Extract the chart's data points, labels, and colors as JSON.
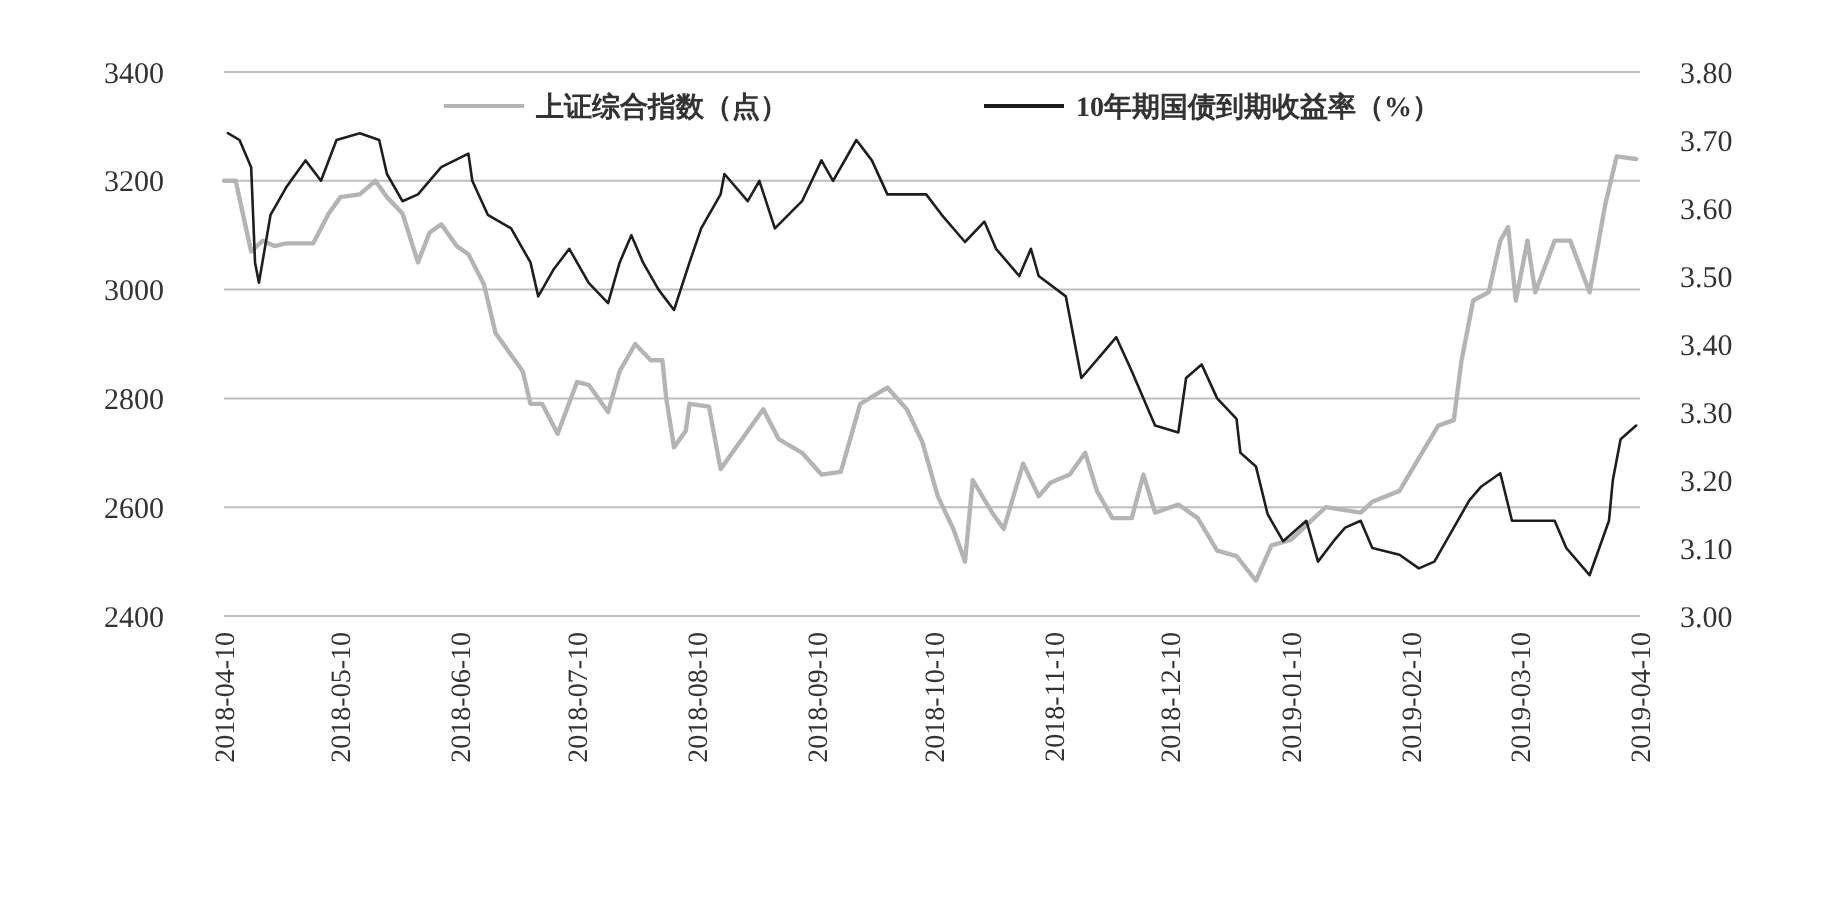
{
  "chart_data": {
    "type": "line",
    "ylim": [
      2400,
      3400
    ],
    "yticks": [
      2400,
      2600,
      2800,
      3000,
      3200,
      3400
    ],
    "y2lim": [
      3.0,
      3.8
    ],
    "y2ticks": [
      {
        "value": 3.0,
        "label": "3.00"
      },
      {
        "value": 3.1,
        "label": "3.10"
      },
      {
        "value": 3.2,
        "label": "3.20"
      },
      {
        "value": 3.3,
        "label": "3.30"
      },
      {
        "value": 3.4,
        "label": "3.40"
      },
      {
        "value": 3.5,
        "label": "3.50"
      },
      {
        "value": 3.6,
        "label": "3.60"
      },
      {
        "value": 3.7,
        "label": "3.70"
      },
      {
        "value": 3.8,
        "label": "3.80"
      }
    ],
    "xlim": [
      "2018-04-10",
      "2019-04-10"
    ],
    "xticks": [
      "2018-04-10",
      "2018-05-10",
      "2018-06-10",
      "2018-07-10",
      "2018-08-10",
      "2018-09-10",
      "2018-10-10",
      "2018-11-10",
      "2018-12-10",
      "2019-01-10",
      "2019-02-10",
      "2019-03-10",
      "2019-04-10"
    ],
    "grid": "y",
    "legend": "top",
    "line_style": "solid",
    "marker": "none",
    "series": [
      {
        "name": "上证综合指数（点）",
        "color": "#b4b4b4",
        "x": [
          "2018-04-10",
          "2018-04-13",
          "2018-04-17",
          "2018-04-20",
          "2018-04-23",
          "2018-04-26",
          "2018-05-03",
          "2018-05-07",
          "2018-05-10",
          "2018-05-15",
          "2018-05-19",
          "2018-05-22",
          "2018-05-26",
          "2018-05-30",
          "2018-06-02",
          "2018-06-05",
          "2018-06-09",
          "2018-06-12",
          "2018-06-16",
          "2018-06-19",
          "2018-06-26",
          "2018-06-28",
          "2018-07-01",
          "2018-07-05",
          "2018-07-10",
          "2018-07-13",
          "2018-07-18",
          "2018-07-21",
          "2018-07-25",
          "2018-07-29",
          "2018-08-01",
          "2018-08-02",
          "2018-08-04",
          "2018-08-07",
          "2018-08-08",
          "2018-08-13",
          "2018-08-16",
          "2018-08-21",
          "2018-08-27",
          "2018-08-31",
          "2018-09-06",
          "2018-09-11",
          "2018-09-16",
          "2018-09-21",
          "2018-09-28",
          "2018-10-03",
          "2018-10-07",
          "2018-10-11",
          "2018-10-15",
          "2018-10-18",
          "2018-10-20",
          "2018-10-25",
          "2018-10-28",
          "2018-11-02",
          "2018-11-06",
          "2018-11-09",
          "2018-11-14",
          "2018-11-18",
          "2018-11-21",
          "2018-11-25",
          "2018-11-30",
          "2018-12-03",
          "2018-12-06",
          "2018-12-12",
          "2018-12-17",
          "2018-12-22",
          "2018-12-27",
          "2019-01-01",
          "2019-01-05",
          "2019-01-10",
          "2019-01-19",
          "2019-01-28",
          "2019-01-31",
          "2019-02-07",
          "2019-02-12",
          "2019-02-17",
          "2019-02-21",
          "2019-02-23",
          "2019-02-26",
          "2019-03-02",
          "2019-03-05",
          "2019-03-07",
          "2019-03-09",
          "2019-03-12",
          "2019-03-14",
          "2019-03-19",
          "2019-03-23",
          "2019-03-28",
          "2019-04-01",
          "2019-04-04",
          "2019-04-09"
        ],
        "values": [
          3200,
          3200,
          3070,
          3090,
          3080,
          3085,
          3085,
          3140,
          3170,
          3175,
          3200,
          3170,
          3140,
          3050,
          3105,
          3120,
          3080,
          3065,
          3010,
          2920,
          2850,
          2790,
          2790,
          2735,
          2830,
          2825,
          2775,
          2850,
          2900,
          2870,
          2870,
          2800,
          2710,
          2740,
          2790,
          2785,
          2670,
          2720,
          2780,
          2725,
          2700,
          2660,
          2665,
          2790,
          2820,
          2780,
          2720,
          2620,
          2560,
          2500,
          2650,
          2590,
          2560,
          2680,
          2620,
          2645,
          2660,
          2700,
          2630,
          2580,
          2580,
          2660,
          2590,
          2605,
          2580,
          2520,
          2510,
          2465,
          2530,
          2540,
          2600,
          2590,
          2610,
          2630,
          2690,
          2750,
          2760,
          2870,
          2980,
          2995,
          3090,
          3115,
          2980,
          3090,
          2995,
          3090,
          3090,
          2995,
          3155,
          3245,
          3240
        ]
      },
      {
        "name": "10年期国债到期收益率（%）",
        "color": "#1e1e1e",
        "axis": "y2",
        "x": [
          "2018-04-11",
          "2018-04-14",
          "2018-04-17",
          "2018-04-18",
          "2018-04-19",
          "2018-04-22",
          "2018-04-26",
          "2018-05-01",
          "2018-05-05",
          "2018-05-09",
          "2018-05-15",
          "2018-05-20",
          "2018-05-22",
          "2018-05-26",
          "2018-05-30",
          "2018-06-05",
          "2018-06-12",
          "2018-06-13",
          "2018-06-17",
          "2018-06-23",
          "2018-06-28",
          "2018-06-30",
          "2018-07-04",
          "2018-07-08",
          "2018-07-13",
          "2018-07-18",
          "2018-07-21",
          "2018-07-24",
          "2018-07-27",
          "2018-07-31",
          "2018-08-04",
          "2018-08-08",
          "2018-08-11",
          "2018-08-16",
          "2018-08-17",
          "2018-08-23",
          "2018-08-26",
          "2018-08-30",
          "2018-09-06",
          "2018-09-11",
          "2018-09-14",
          "2018-09-20",
          "2018-09-24",
          "2018-09-28",
          "2018-10-08",
          "2018-10-12",
          "2018-10-18",
          "2018-10-23",
          "2018-10-26",
          "2018-11-01",
          "2018-11-04",
          "2018-11-06",
          "2018-11-13",
          "2018-11-14",
          "2018-11-17",
          "2018-11-23",
          "2018-11-26",
          "2018-11-30",
          "2018-12-06",
          "2018-12-12",
          "2018-12-14",
          "2018-12-18",
          "2018-12-22",
          "2018-12-27",
          "2018-12-28",
          "2019-01-01",
          "2019-01-04",
          "2019-01-08",
          "2019-01-14",
          "2019-01-17",
          "2019-01-21",
          "2019-01-24",
          "2019-01-28",
          "2019-01-31",
          "2019-02-07",
          "2019-02-12",
          "2019-02-16",
          "2019-02-21",
          "2019-02-25",
          "2019-02-28",
          "2019-03-05",
          "2019-03-08",
          "2019-03-14",
          "2019-03-19",
          "2019-03-22",
          "2019-03-28",
          "2019-04-02",
          "2019-04-03",
          "2019-04-05",
          "2019-04-09"
        ],
        "values": [
          3.71,
          3.7,
          3.66,
          3.52,
          3.49,
          3.59,
          3.63,
          3.67,
          3.64,
          3.7,
          3.71,
          3.7,
          3.65,
          3.61,
          3.62,
          3.66,
          3.68,
          3.64,
          3.59,
          3.57,
          3.52,
          3.47,
          3.51,
          3.54,
          3.49,
          3.46,
          3.52,
          3.56,
          3.52,
          3.48,
          3.45,
          3.52,
          3.57,
          3.62,
          3.65,
          3.61,
          3.64,
          3.57,
          3.61,
          3.67,
          3.64,
          3.7,
          3.67,
          3.62,
          3.62,
          3.59,
          3.55,
          3.58,
          3.54,
          3.5,
          3.54,
          3.5,
          3.47,
          3.44,
          3.35,
          3.39,
          3.41,
          3.36,
          3.28,
          3.27,
          3.35,
          3.37,
          3.32,
          3.29,
          3.24,
          3.22,
          3.15,
          3.11,
          3.14,
          3.08,
          3.11,
          3.13,
          3.14,
          3.1,
          3.09,
          3.07,
          3.08,
          3.13,
          3.17,
          3.19,
          3.21,
          3.14,
          3.14,
          3.14,
          3.1,
          3.06,
          3.14,
          3.2,
          3.26,
          3.28
        ]
      }
    ]
  }
}
